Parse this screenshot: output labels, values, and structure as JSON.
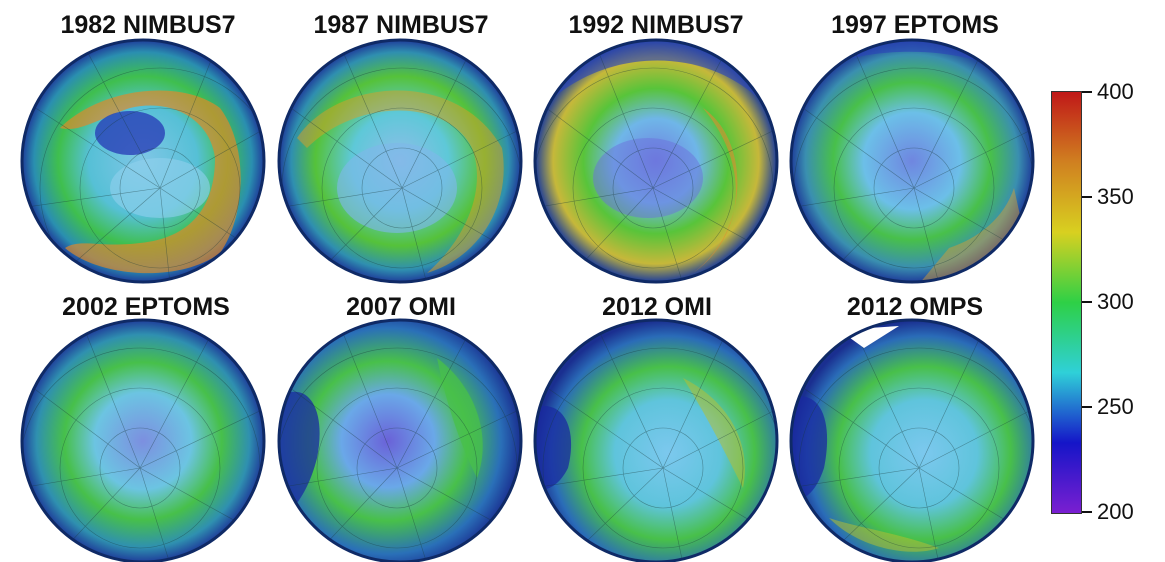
{
  "panels": [
    {
      "title": "1982 NIMBUS7"
    },
    {
      "title": "1987 NIMBUS7"
    },
    {
      "title": "1992 NIMBUS7"
    },
    {
      "title": "1997 EPTOMS"
    },
    {
      "title": "2002 EPTOMS"
    },
    {
      "title": "2007 OMI"
    },
    {
      "title": "2012 OMI"
    },
    {
      "title": "2012 OMPS"
    }
  ],
  "colorbar": {
    "min": 200,
    "max": 400,
    "ticks": [
      "400",
      "350",
      "300",
      "250",
      "200"
    ],
    "colors": [
      "#7a1fd1",
      "#1515c8",
      "#2fd0d8",
      "#2ed046",
      "#d8d020",
      "#d08020",
      "#c01818"
    ]
  }
}
